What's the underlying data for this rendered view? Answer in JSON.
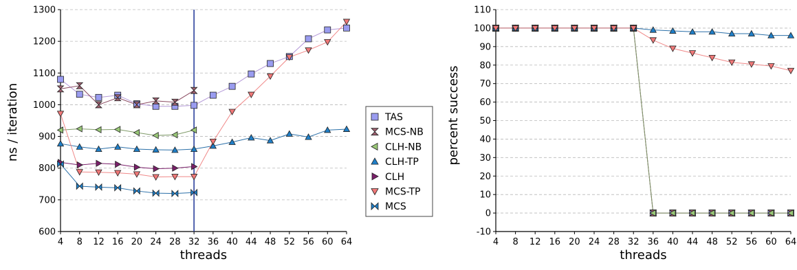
{
  "chart_data": [
    {
      "type": "line",
      "title": "",
      "xlabel": "threads",
      "ylabel": "ns / iteration",
      "ylim": [
        600,
        1300
      ],
      "yticks": [
        600,
        700,
        800,
        900,
        1000,
        1100,
        1200,
        1300
      ],
      "xticks": [
        4,
        8,
        12,
        16,
        20,
        24,
        28,
        32,
        36,
        40,
        44,
        48,
        52,
        56,
        60,
        64
      ],
      "grid": true,
      "legend_position": "right",
      "vline_x": 32,
      "vline_color": "#2a3f9c",
      "series": [
        {
          "name": "TAS",
          "marker": "square",
          "fill": "#9a9cf0",
          "line": "#b59ad8",
          "x": [
            4,
            8,
            12,
            16,
            20,
            24,
            28,
            32,
            36,
            40,
            44,
            48,
            52,
            56,
            60,
            64
          ],
          "y": [
            1080,
            1033,
            1023,
            1030,
            1003,
            995,
            995,
            998,
            1030,
            1058,
            1097,
            1130,
            1152,
            1208,
            1236,
            1242
          ]
        },
        {
          "name": "MCS-NB",
          "marker": "hourglass",
          "fill": "#a06070",
          "line": "#8a4a60",
          "x": [
            4,
            8,
            12,
            16,
            20,
            24,
            28,
            32
          ],
          "y": [
            1050,
            1060,
            1000,
            1022,
            1000,
            1012,
            1008,
            1045
          ]
        },
        {
          "name": "CLH-NB",
          "marker": "tri-left",
          "fill": "#9ac878",
          "line": "#7f9a68",
          "x": [
            4,
            8,
            12,
            16,
            20,
            24,
            28,
            32
          ],
          "y": [
            920,
            924,
            921,
            922,
            912,
            903,
            905,
            920
          ]
        },
        {
          "name": "CLH-TP",
          "marker": "tri-up",
          "fill": "#1f7fc8",
          "line": "#2a6fa8",
          "x": [
            4,
            8,
            12,
            16,
            20,
            24,
            28,
            32,
            36,
            40,
            44,
            48,
            52,
            56,
            60,
            64
          ],
          "y": [
            877,
            867,
            860,
            867,
            860,
            858,
            857,
            860,
            870,
            882,
            896,
            887,
            908,
            898,
            920,
            923
          ]
        },
        {
          "name": "CLH",
          "marker": "tri-right",
          "fill": "#7a1f6a",
          "line": "#7a1f6a",
          "x": [
            4,
            8,
            12,
            16,
            20,
            24,
            28,
            32
          ],
          "y": [
            818,
            810,
            815,
            812,
            803,
            798,
            800,
            805
          ]
        },
        {
          "name": "MCS-TP",
          "marker": "tri-down",
          "fill": "#f07878",
          "line": "#f08888",
          "x": [
            4,
            8,
            12,
            16,
            20,
            24,
            28,
            32,
            36,
            40,
            44,
            48,
            52,
            56,
            60,
            64
          ],
          "y": [
            972,
            788,
            787,
            785,
            781,
            772,
            773,
            773,
            884,
            978,
            1032,
            1090,
            1150,
            1172,
            1198,
            1262
          ]
        },
        {
          "name": "MCS",
          "marker": "bowtie",
          "fill": "#1f7fc8",
          "line": "#2a6fa8",
          "x": [
            4,
            8,
            12,
            16,
            20,
            24,
            28,
            32
          ],
          "y": [
            813,
            743,
            740,
            738,
            728,
            721,
            720,
            723
          ]
        }
      ]
    },
    {
      "type": "line",
      "title": "",
      "xlabel": "threads",
      "ylabel": "percent success",
      "ylim": [
        -10,
        110
      ],
      "yticks": [
        -10,
        0,
        10,
        20,
        30,
        40,
        50,
        60,
        70,
        80,
        90,
        100,
        110
      ],
      "xticks": [
        4,
        8,
        12,
        16,
        20,
        24,
        28,
        32,
        36,
        40,
        44,
        48,
        52,
        56,
        60,
        64
      ],
      "grid": true,
      "series": [
        {
          "name": "TAS",
          "marker": "square",
          "fill": "#9a9cf0",
          "line": "#b59ad8",
          "x": [
            4,
            8,
            12,
            16,
            20,
            24,
            28,
            32,
            36,
            40,
            44,
            48,
            52,
            56,
            60,
            64
          ],
          "y": [
            100,
            100,
            100,
            100,
            100,
            100,
            100,
            100,
            0,
            0,
            0,
            0,
            0,
            0,
            0,
            0
          ]
        },
        {
          "name": "MCS-NB",
          "marker": "hourglass",
          "fill": "#a06070",
          "line": "#8a4a60",
          "x": [
            4,
            8,
            12,
            16,
            20,
            24,
            28,
            32,
            36,
            40,
            44,
            48,
            52,
            56,
            60,
            64
          ],
          "y": [
            100,
            100,
            100,
            100,
            100,
            100,
            100,
            100,
            0,
            0,
            0,
            0,
            0,
            0,
            0,
            0
          ]
        },
        {
          "name": "CLH-NB",
          "marker": "tri-left",
          "fill": "#9ac878",
          "line": "#7f9a68",
          "x": [
            4,
            8,
            12,
            16,
            20,
            24,
            28,
            32,
            36,
            40,
            44,
            48,
            52,
            56,
            60,
            64
          ],
          "y": [
            100,
            100,
            100,
            100,
            100,
            100,
            100,
            100,
            0,
            0,
            0,
            0,
            0,
            0,
            0,
            0
          ]
        },
        {
          "name": "CLH-TP",
          "marker": "tri-up",
          "fill": "#1f7fc8",
          "line": "#2a6fa8",
          "x": [
            4,
            8,
            12,
            16,
            20,
            24,
            28,
            32,
            36,
            40,
            44,
            48,
            52,
            56,
            60,
            64
          ],
          "y": [
            100,
            100,
            100,
            100,
            100,
            100,
            100,
            100,
            99,
            98.5,
            98,
            98,
            97,
            97,
            96,
            96
          ]
        },
        {
          "name": "MCS-TP",
          "marker": "tri-down",
          "fill": "#f07878",
          "line": "#f08888",
          "x": [
            4,
            8,
            12,
            16,
            20,
            24,
            28,
            32,
            36,
            40,
            44,
            48,
            52,
            56,
            60,
            64
          ],
          "y": [
            100,
            100,
            100,
            100,
            100,
            100,
            100,
            100,
            93.5,
            89,
            86.5,
            84,
            81.5,
            80.5,
            79.5,
            77
          ]
        }
      ]
    }
  ]
}
